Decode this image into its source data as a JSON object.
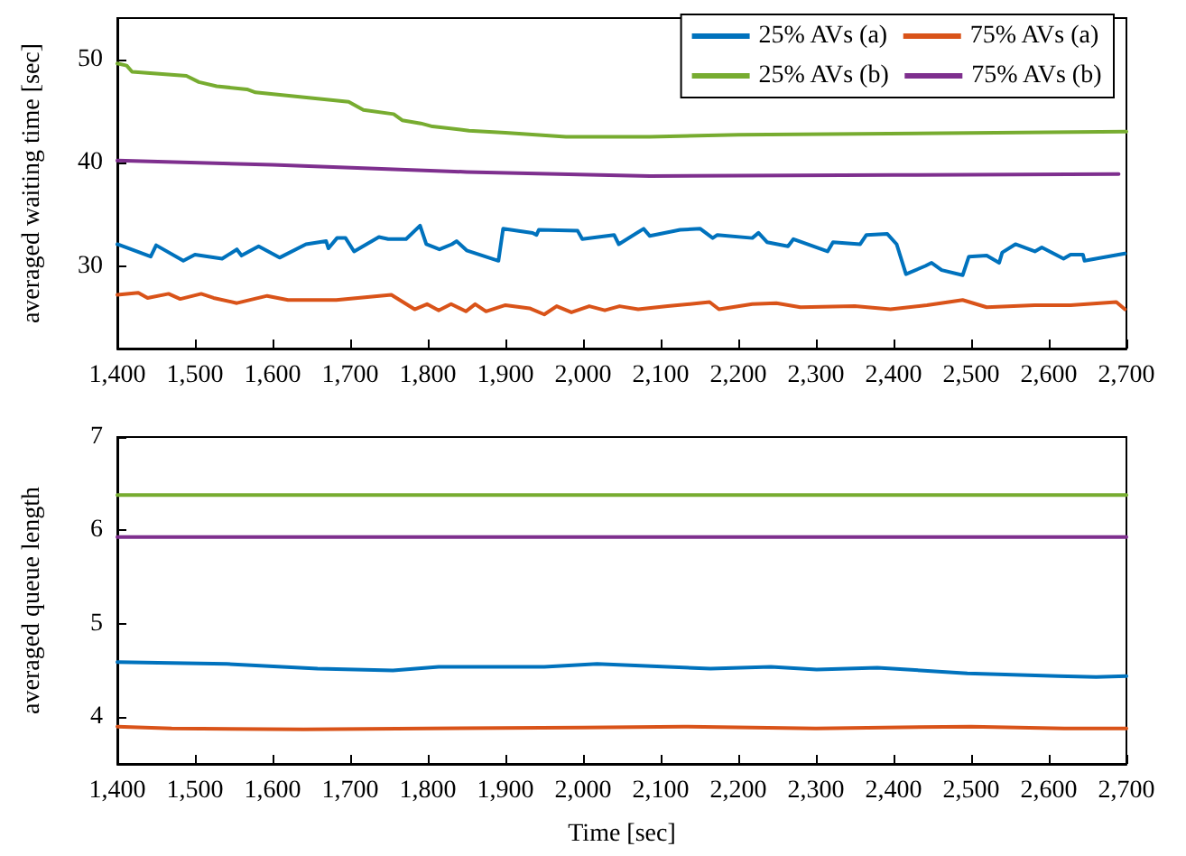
{
  "chart_data": [
    {
      "type": "line",
      "ylabel": "averaged waiting time [sec]",
      "legend": "top right",
      "marker": "none",
      "line_style": "solid",
      "grid": false,
      "xlim": [
        1400,
        2700
      ],
      "ylim": [
        22,
        54
      ],
      "yticks": [
        30,
        40,
        50
      ],
      "xticks": [
        {
          "value": 1400,
          "label": "1,400"
        },
        {
          "value": 1500,
          "label": "1,500"
        },
        {
          "value": 1600,
          "label": "1,600"
        },
        {
          "value": 1700,
          "label": "1,700"
        },
        {
          "value": 1800,
          "label": "1,800"
        },
        {
          "value": 1900,
          "label": "1,900"
        },
        {
          "value": 2000,
          "label": "2,000"
        },
        {
          "value": 2100,
          "label": "2,100"
        },
        {
          "value": 2200,
          "label": "2,200"
        },
        {
          "value": 2300,
          "label": "2,300"
        },
        {
          "value": 2400,
          "label": "2,400"
        },
        {
          "value": 2500,
          "label": "2,500"
        },
        {
          "value": 2600,
          "label": "2,600"
        },
        {
          "value": 2700,
          "label": "2,700"
        }
      ],
      "series": [
        {
          "name": "25% AVs (a)",
          "color": "#0072bd",
          "x": [
            1400,
            1443,
            1450,
            1485,
            1500,
            1535,
            1554,
            1560,
            1582,
            1609,
            1643,
            1669,
            1672,
            1683,
            1694,
            1705,
            1737,
            1749,
            1772,
            1790,
            1798,
            1815,
            1831,
            1837,
            1850,
            1891,
            1897,
            1935,
            1940,
            1943,
            1993,
            1999,
            2040,
            2046,
            2078,
            2086,
            2125,
            2151,
            2167,
            2173,
            2218,
            2226,
            2237,
            2264,
            2271,
            2315,
            2322,
            2357,
            2365,
            2392,
            2404,
            2416,
            2441,
            2449,
            2462,
            2489,
            2497,
            2520,
            2536,
            2540,
            2557,
            2582,
            2591,
            2619,
            2628,
            2644,
            2646,
            2698
          ],
          "values": [
            32.1,
            30.9,
            32.0,
            30.5,
            31.1,
            30.7,
            31.6,
            31.0,
            31.9,
            30.8,
            32.1,
            32.4,
            31.7,
            32.7,
            32.7,
            31.4,
            32.8,
            32.6,
            32.6,
            33.9,
            32.1,
            31.6,
            32.1,
            32.4,
            31.5,
            30.5,
            33.6,
            33.2,
            33.0,
            33.5,
            33.4,
            32.6,
            33.0,
            32.1,
            33.6,
            32.9,
            33.5,
            33.6,
            32.7,
            33.0,
            32.7,
            33.2,
            32.3,
            31.9,
            32.6,
            31.4,
            32.3,
            32.1,
            33.0,
            33.1,
            32.1,
            29.2,
            30.0,
            30.3,
            29.6,
            29.1,
            30.9,
            31.0,
            30.3,
            31.3,
            32.1,
            31.4,
            31.8,
            30.7,
            31.1,
            31.1,
            30.5,
            31.2
          ]
        },
        {
          "name": "75% AVs (a)",
          "color": "#d95319",
          "x": [
            1400,
            1427,
            1439,
            1466,
            1481,
            1508,
            1524,
            1554,
            1593,
            1620,
            1682,
            1753,
            1783,
            1799,
            1814,
            1830,
            1849,
            1861,
            1875,
            1900,
            1931,
            1950,
            1966,
            1985,
            2008,
            2028,
            2047,
            2071,
            2109,
            2163,
            2175,
            2218,
            2249,
            2280,
            2350,
            2396,
            2443,
            2489,
            2520,
            2582,
            2628,
            2687,
            2698
          ],
          "values": [
            27.2,
            27.4,
            26.9,
            27.3,
            26.8,
            27.3,
            26.9,
            26.4,
            27.1,
            26.7,
            26.7,
            27.2,
            25.8,
            26.3,
            25.7,
            26.3,
            25.6,
            26.3,
            25.6,
            26.2,
            25.9,
            25.3,
            26.1,
            25.5,
            26.1,
            25.7,
            26.1,
            25.8,
            26.1,
            26.5,
            25.8,
            26.3,
            26.4,
            26.0,
            26.1,
            25.8,
            26.2,
            26.7,
            26.0,
            26.2,
            26.2,
            26.5,
            25.8
          ]
        },
        {
          "name": "25% AVs (b)",
          "color": "#77ac30",
          "x": [
            1400,
            1412,
            1419,
            1489,
            1505,
            1528,
            1567,
            1578,
            1698,
            1717,
            1756,
            1767,
            1791,
            1806,
            1853,
            1900,
            1978,
            2086,
            2200,
            2700
          ],
          "values": [
            49.6,
            49.4,
            48.8,
            48.4,
            47.8,
            47.4,
            47.1,
            46.8,
            45.9,
            45.1,
            44.7,
            44.1,
            43.8,
            43.5,
            43.1,
            42.9,
            42.5,
            42.5,
            42.7,
            43.0
          ]
        },
        {
          "name": "75% AVs (b)",
          "color": "#7e2f8e",
          "x": [
            1400,
            1600,
            1850,
            2086,
            2400,
            2690
          ],
          "values": [
            40.2,
            39.8,
            39.1,
            38.7,
            38.8,
            38.9
          ]
        }
      ]
    },
    {
      "type": "line",
      "ylabel": "averaged queue length",
      "xlabel": "Time [sec]",
      "legend": false,
      "marker": "none",
      "line_style": "solid",
      "grid": false,
      "xlim": [
        1400,
        2700
      ],
      "ylim": [
        3.5,
        7
      ],
      "yticks": [
        4,
        5,
        6,
        7
      ],
      "xticks": [
        {
          "value": 1400,
          "label": "1,400"
        },
        {
          "value": 1500,
          "label": "1,500"
        },
        {
          "value": 1600,
          "label": "1,600"
        },
        {
          "value": 1700,
          "label": "1,700"
        },
        {
          "value": 1800,
          "label": "1,800"
        },
        {
          "value": 1900,
          "label": "1,900"
        },
        {
          "value": 2000,
          "label": "2,000"
        },
        {
          "value": 2100,
          "label": "2,100"
        },
        {
          "value": 2200,
          "label": "2,200"
        },
        {
          "value": 2300,
          "label": "2,300"
        },
        {
          "value": 2400,
          "label": "2,400"
        },
        {
          "value": 2500,
          "label": "2,500"
        },
        {
          "value": 2600,
          "label": "2,600"
        },
        {
          "value": 2700,
          "label": "2,700"
        }
      ],
      "series": [
        {
          "color": "#0072bd",
          "x": [
            1400,
            1541,
            1658,
            1755,
            1814,
            1950,
            2018,
            2164,
            2242,
            2301,
            2379,
            2495,
            2612,
            2661,
            2700
          ],
          "values": [
            4.59,
            4.57,
            4.52,
            4.5,
            4.54,
            4.54,
            4.57,
            4.52,
            4.54,
            4.51,
            4.53,
            4.47,
            4.44,
            4.43,
            4.44
          ]
        },
        {
          "color": "#d95319",
          "x": [
            1400,
            1470,
            1640,
            1800,
            2000,
            2130,
            2300,
            2500,
            2620,
            2700
          ],
          "values": [
            3.9,
            3.88,
            3.87,
            3.88,
            3.89,
            3.9,
            3.88,
            3.9,
            3.88,
            3.88
          ]
        },
        {
          "color": "#77ac30",
          "x": [
            1400,
            2700
          ],
          "values": [
            6.38,
            6.38
          ]
        },
        {
          "color": "#7e2f8e",
          "x": [
            1400,
            2700
          ],
          "values": [
            5.93,
            5.93
          ]
        }
      ]
    }
  ]
}
